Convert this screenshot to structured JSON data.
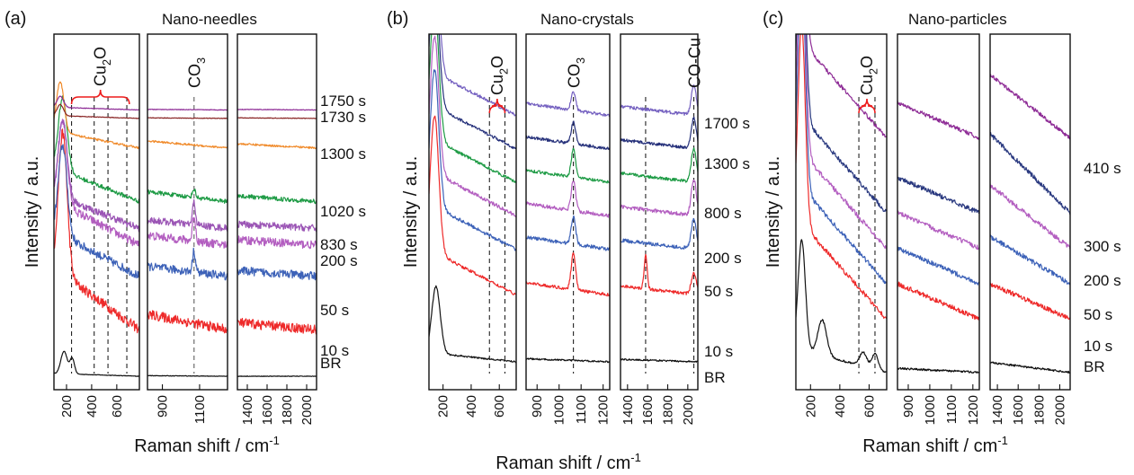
{
  "colors": {
    "BR": "#111111",
    "10 s": "#ee2a2a",
    "50 s": "#3d62b8",
    "200 s": "#b35ec0",
    "830 s": "#9b55b5",
    "800 s": "#1e9b45",
    "1020 s": "#1e9b45",
    "1300 s": "#f08a2a",
    "1730 s": "#8a2626",
    "1750 s": "#8e2c96",
    "1300 s_b": "#25307a",
    "1700 s": "#7460c0",
    "300 s": "#2b3a80",
    "410 s": "#8e2c96",
    "marker": "#ee1c1c"
  },
  "chart_data": [
    {
      "type": "line",
      "panel_label": "(a)",
      "title": "Nano-needles",
      "xlabel": "Raman shift / cm-1",
      "ylabel": "Intensity / a.u.",
      "segments": [
        {
          "xlim": [
            100,
            780
          ],
          "ticks": [
            200,
            400,
            600
          ]
        },
        {
          "xlim": [
            820,
            1250
          ],
          "ticks": [
            900,
            1100
          ]
        },
        {
          "xlim": [
            1300,
            2100
          ],
          "ticks": [
            1400,
            1600,
            1800,
            2000
          ]
        }
      ],
      "annotations": [
        {
          "text": "Cu2O",
          "type": "brace",
          "x": [
            240,
            700
          ]
        },
        {
          "text": "CO3",
          "type": "line",
          "x": [
            1070
          ]
        }
      ],
      "guides": [
        240,
        420,
        530,
        680,
        1070
      ],
      "series": [
        {
          "name": "BR",
          "offset": 0.35,
          "features": [
            [
              180,
              0.8,
              25
            ],
            [
              245,
              0.55,
              18
            ]
          ],
          "slope": [
            0.1,
            0.02,
            0
          ]
        },
        {
          "name": "10 s",
          "offset": 2.0,
          "features": [
            [
              170,
              5.0,
              35
            ]
          ],
          "slope": [
            2.2,
            0.55,
            0.25
          ],
          "noise": 0.35
        },
        {
          "name": "50 s",
          "offset": 3.9,
          "features": [
            [
              170,
              3.2,
              35
            ],
            [
              1070,
              0.75,
              8
            ]
          ],
          "slope": [
            1.6,
            0.35,
            0.2
          ],
          "noise": 0.3
        },
        {
          "name": "200 s",
          "offset": 5.0,
          "features": [
            [
              170,
              3.0,
              35
            ],
            [
              1070,
              0.9,
              8
            ]
          ],
          "slope": [
            1.6,
            0.35,
            0.2
          ],
          "noise": 0.3
        },
        {
          "name": "830 s",
          "offset": 5.6,
          "features": [
            [
              170,
              2.8,
              35
            ],
            [
              1070,
              0.8,
              8
            ]
          ],
          "slope": [
            1.2,
            0.3,
            0.15
          ],
          "noise": 0.25
        },
        {
          "name": "1020 s",
          "offset": 6.55,
          "features": [
            [
              170,
              2.6,
              35
            ],
            [
              1070,
              0.3,
              8
            ]
          ],
          "slope": [
            1.2,
            0.35,
            0.2
          ],
          "noise": 0.15
        },
        {
          "name": "1300 s",
          "offset": 8.45,
          "features": [
            [
              150,
              1.8,
              30
            ]
          ],
          "slope": [
            0.6,
            0.25,
            0.15
          ],
          "noise": 0.07
        },
        {
          "name": "1730 s",
          "offset": 9.5,
          "features": [
            [
              150,
              0.4,
              25
            ]
          ],
          "slope": [
            0.1,
            0.02,
            0.02
          ],
          "noise": 0.02
        },
        {
          "name": "1750 s",
          "offset": 9.8,
          "features": [
            [
              150,
              0.4,
              25
            ]
          ],
          "slope": [
            0.1,
            0.02,
            0.02
          ],
          "noise": 0.02
        }
      ]
    },
    {
      "type": "line",
      "panel_label": "(b)",
      "title": "Nano-crystals",
      "xlabel": "Raman shift / cm-1",
      "ylabel": "Intensity / a.u.",
      "segments": [
        {
          "xlim": [
            100,
            720
          ],
          "ticks": [
            200,
            400,
            600
          ]
        },
        {
          "xlim": [
            850,
            1230
          ],
          "ticks": [
            900,
            1000,
            1100,
            1200
          ]
        },
        {
          "xlim": [
            1330,
            2100
          ],
          "ticks": [
            1400,
            1600,
            1800,
            2000
          ]
        }
      ],
      "annotations": [
        {
          "text": "Cu2O",
          "type": "brace",
          "x": [
            530,
            640
          ]
        },
        {
          "text": "CO3",
          "type": "line",
          "x": [
            1065
          ]
        },
        {
          "text": "CO-Cu",
          "type": "line",
          "x": [
            2060
          ]
        }
      ],
      "guides": [
        530,
        640,
        1065,
        1580,
        2060
      ],
      "series": [
        {
          "name": "BR",
          "offset": 0.8,
          "features": [
            [
              150,
              2.2,
              30
            ]
          ],
          "slope": [
            0.3,
            0.1,
            0.08
          ],
          "noise": 0.05
        },
        {
          "name": "10 s",
          "offset": 3.0,
          "features": [
            [
              140,
              4.5,
              30
            ],
            [
              1065,
              1.2,
              10
            ],
            [
              1580,
              1.1,
              15
            ],
            [
              2060,
              0.7,
              25
            ]
          ],
          "slope": [
            1.5,
            0.4,
            0.3
          ],
          "noise": 0.1
        },
        {
          "name": "50 s",
          "offset": 4.5,
          "features": [
            [
              140,
              4.5,
              30
            ],
            [
              1065,
              0.9,
              10
            ],
            [
              2060,
              1.0,
              25
            ]
          ],
          "slope": [
            1.5,
            0.4,
            0.3
          ],
          "noise": 0.12
        },
        {
          "name": "200 s",
          "offset": 5.6,
          "features": [
            [
              140,
              4.5,
              30
            ],
            [
              1065,
              1.0,
              10
            ],
            [
              2060,
              1.2,
              25
            ]
          ],
          "slope": [
            1.5,
            0.4,
            0.3
          ],
          "noise": 0.12
        },
        {
          "name": "800 s",
          "offset": 6.7,
          "features": [
            [
              140,
              4.5,
              30
            ],
            [
              1065,
              0.9,
              10
            ],
            [
              2060,
              1.1,
              25
            ]
          ],
          "slope": [
            1.5,
            0.4,
            0.3
          ],
          "noise": 0.1
        },
        {
          "name": "1300 s",
          "offset": 7.8,
          "features": [
            [
              140,
              4.5,
              30
            ],
            [
              1065,
              0.7,
              10
            ],
            [
              2060,
              1.0,
              25
            ]
          ],
          "slope": [
            1.5,
            0.4,
            0.3
          ],
          "noise": 0.1
        },
        {
          "name": "1700 s",
          "offset": 8.9,
          "features": [
            [
              140,
              4.5,
              30
            ],
            [
              1065,
              0.6,
              10
            ],
            [
              2060,
              1.0,
              25
            ]
          ],
          "slope": [
            1.5,
            0.4,
            0.3
          ],
          "noise": 0.1
        }
      ]
    },
    {
      "type": "line",
      "panel_label": "(c)",
      "title": "Nano-particles",
      "xlabel": "Raman shift / cm-1",
      "ylabel": "Intensity / a.u.",
      "segments": [
        {
          "xlim": [
            100,
            720
          ],
          "ticks": [
            200,
            400,
            600
          ]
        },
        {
          "xlim": [
            850,
            1230
          ],
          "ticks": [
            900,
            1000,
            1100,
            1200
          ]
        },
        {
          "xlim": [
            1330,
            2100
          ],
          "ticks": [
            1400,
            1600,
            1800,
            2000
          ]
        }
      ],
      "annotations": [
        {
          "text": "Cu2O",
          "type": "brace",
          "x": [
            530,
            640
          ]
        }
      ],
      "guides": [
        530,
        640
      ],
      "series": [
        {
          "name": "BR",
          "offset": 0.35,
          "features": [
            [
              140,
              2.8,
              25
            ],
            [
              280,
              0.9,
              30
            ],
            [
              560,
              0.35,
              25
            ],
            [
              640,
              0.4,
              20
            ]
          ],
          "slope": [
            0.6,
            0.1,
            0.25
          ],
          "noise": 0.05
        },
        {
          "name": "10 s",
          "offset": 1.7,
          "features": [
            [
              140,
              5.0,
              25
            ]
          ],
          "slope": [
            2.6,
            0.9,
            0.9
          ],
          "noise": 0.12
        },
        {
          "name": "50 s",
          "offset": 2.6,
          "features": [
            [
              140,
              5.5,
              25
            ]
          ],
          "slope": [
            2.6,
            0.9,
            1.2
          ],
          "noise": 0.12
        },
        {
          "name": "200 s",
          "offset": 3.5,
          "features": [
            [
              140,
              5.5,
              25
            ]
          ],
          "slope": [
            2.6,
            0.9,
            1.6
          ],
          "noise": 0.12
        },
        {
          "name": "300 s",
          "offset": 4.4,
          "features": [
            [
              140,
              5.5,
              25
            ]
          ],
          "slope": [
            2.6,
            0.9,
            2.0
          ],
          "noise": 0.12
        },
        {
          "name": "410 s",
          "offset": 6.3,
          "features": [
            [
              140,
              4.5,
              25
            ]
          ],
          "slope": [
            2.6,
            0.9,
            1.6
          ],
          "noise": 0.1
        }
      ]
    }
  ]
}
